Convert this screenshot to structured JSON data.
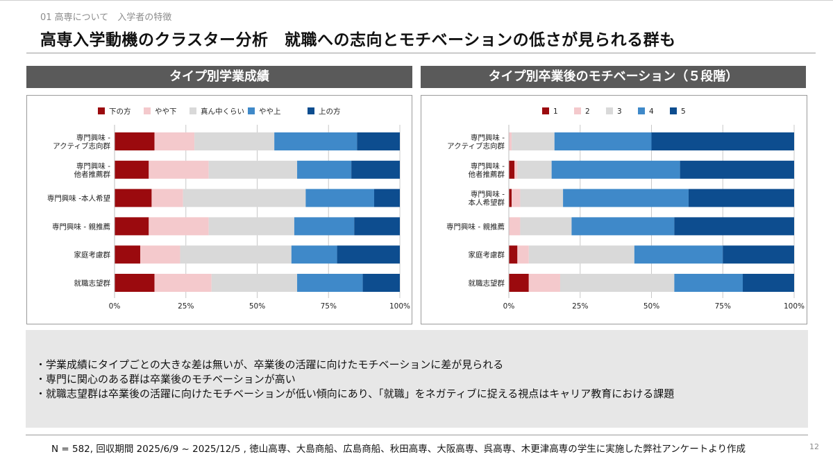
{
  "header": {
    "breadcrumb": "01 高専について　入学者の特徴",
    "title": "高専入学動機のクラスター分析　就職への志向とモチベーションの低さが見られる群も"
  },
  "colors": {
    "c1": "#9b0a0e",
    "c2": "#f4c9cc",
    "c3": "#d9d9d9",
    "c4": "#3f89c9",
    "c5": "#0d4d8f"
  },
  "chart_data": [
    {
      "type": "bar",
      "orientation": "horizontal",
      "stacked": "100%",
      "title": "タイプ別学業成績",
      "legend_position": "top",
      "categories": [
        [
          "専門興味 -",
          "アクティブ志向群"
        ],
        [
          "専門興味 -",
          "他者推薦群"
        ],
        [
          "専門興味 -本人希望"
        ],
        [
          "専門興味  - 親推薦"
        ],
        [
          "家庭考慮群"
        ],
        [
          "就職志望群"
        ]
      ],
      "series": [
        {
          "name": "下の方",
          "values": [
            14,
            12,
            13,
            12,
            9,
            14
          ]
        },
        {
          "name": "やや下",
          "values": [
            14,
            21,
            11,
            21,
            14,
            20
          ]
        },
        {
          "name": "真ん中くらい",
          "values": [
            28,
            31,
            43,
            30,
            39,
            30
          ]
        },
        {
          "name": "やや上",
          "values": [
            29,
            19,
            24,
            21,
            16,
            23
          ]
        },
        {
          "name": "上の方",
          "values": [
            15,
            17,
            9,
            16,
            22,
            13
          ]
        }
      ],
      "x_ticks": [
        "0%",
        "25%",
        "50%",
        "75%",
        "100%"
      ],
      "xlim": [
        0,
        100
      ]
    },
    {
      "type": "bar",
      "orientation": "horizontal",
      "stacked": "100%",
      "title": "タイプ別卒業後のモチベーション（５段階）",
      "legend_position": "top",
      "categories": [
        [
          "専門興味 -",
          "アクティブ志向群"
        ],
        [
          "専門興味 -",
          "他者推薦群"
        ],
        [
          "専門興味 -",
          "本人希望群"
        ],
        [
          "専門興味 - 親推薦"
        ],
        [
          "家庭考慮群"
        ],
        [
          "就職志望群"
        ]
      ],
      "series": [
        {
          "name": "1",
          "values": [
            0,
            2,
            1,
            0,
            3,
            7
          ]
        },
        {
          "name": "2",
          "values": [
            1,
            1,
            3,
            4,
            4,
            11
          ]
        },
        {
          "name": "3",
          "values": [
            15,
            12,
            15,
            18,
            37,
            40
          ]
        },
        {
          "name": "4",
          "values": [
            34,
            45,
            44,
            36,
            31,
            24
          ]
        },
        {
          "name": "5",
          "values": [
            50,
            40,
            37,
            42,
            25,
            18
          ]
        }
      ],
      "x_ticks": [
        "0%",
        "25%",
        "50%",
        "75%",
        "100%"
      ],
      "xlim": [
        0,
        100
      ]
    }
  ],
  "summary": {
    "bullets": [
      "・学業成績にタイプごとの大きな差は無いが、卒業後の活躍に向けたモチベーションに差が見られる",
      "・専門に関心のある群は卒業後のモチベーションが高い",
      "・就職志望群は卒業後の活躍に向けたモチベーションが低い傾向にあり、「就職」をネガティブに捉える視点はキャリア教育における課題"
    ]
  },
  "footer": {
    "note": "N = 582, 回収期間 2025/6/9 ~ 2025/12/5 , 徳山高専、大島商船、広島商船、秋田高専、大阪高専、呉高専、木更津高専の学生に実施した弊社アンケートより作成",
    "page": "12"
  }
}
